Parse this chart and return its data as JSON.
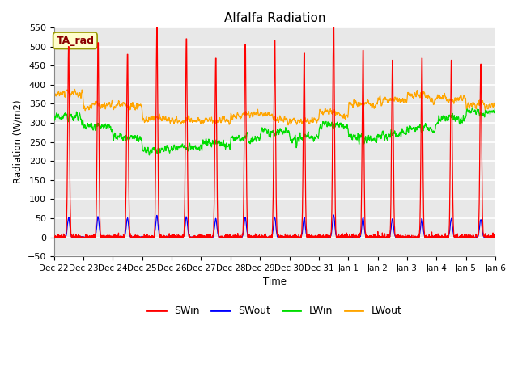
{
  "title": "Alfalfa Radiation",
  "ylabel": "Radiation (W/m2)",
  "xlabel": "Time",
  "ylim": [
    -50,
    550
  ],
  "annotation": "TA_rad",
  "annotation_color": "#8B0000",
  "annotation_bg": "#FFFFCC",
  "annotation_edge": "#999900",
  "series": [
    "SWin",
    "SWout",
    "LWin",
    "LWout"
  ],
  "colors": [
    "#FF0000",
    "#0000FF",
    "#00DD00",
    "#FFA500"
  ],
  "background_color": "#E8E8E8",
  "grid_color": "#FFFFFF",
  "tick_labels": [
    "Dec 22",
    "Dec 23",
    "Dec 24",
    "Dec 25",
    "Dec 26",
    "Dec 27",
    "Dec 28",
    "Dec 29",
    "Dec 30",
    "Dec 31",
    "Jan 1",
    "Jan 2",
    "Jan 3",
    "Jan 4",
    "Jan 5",
    "Jan 6"
  ],
  "n_days": 15,
  "points_per_day": 144,
  "SWin_peaks": [
    490,
    500,
    470,
    540,
    510,
    460,
    495,
    505,
    475,
    550,
    480,
    455,
    460,
    455,
    445
  ],
  "LWin_vals": [
    315,
    290,
    260,
    230,
    235,
    245,
    260,
    275,
    260,
    295,
    260,
    270,
    285,
    310,
    330
  ],
  "LWout_vals": [
    375,
    345,
    345,
    310,
    305,
    305,
    320,
    315,
    305,
    325,
    350,
    360,
    370,
    365,
    345
  ]
}
